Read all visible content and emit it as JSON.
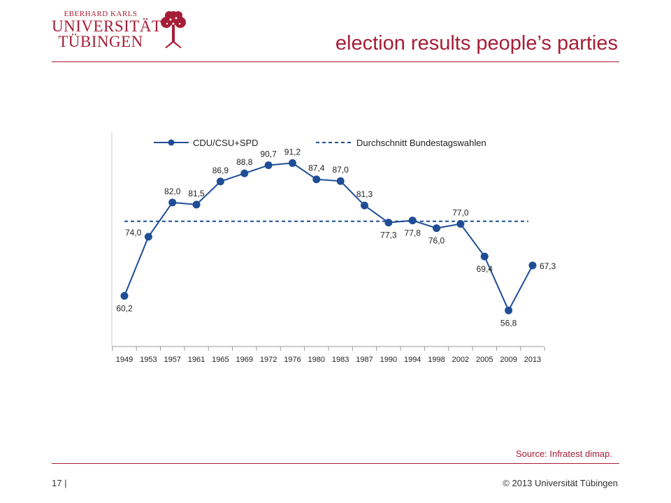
{
  "header": {
    "logo": {
      "line1": "EBERHARD KARLS",
      "line2": "UNIVERSITÄT",
      "line3": "TÜBINGEN"
    },
    "title": "election results people’s parties"
  },
  "chart_data": {
    "type": "line",
    "categories": [
      "1949",
      "1953",
      "1957",
      "1961",
      "1965",
      "1969",
      "1972",
      "1976",
      "1980",
      "1983",
      "1987",
      "1990",
      "1994",
      "1998",
      "2002",
      "2005",
      "2009",
      "2013"
    ],
    "series": [
      {
        "name": "CDU/CSU+SPD",
        "color": "#1f4e96",
        "values": [
          60.2,
          74.0,
          82.0,
          81.5,
          86.9,
          88.8,
          90.7,
          91.2,
          87.4,
          87.0,
          81.3,
          77.3,
          77.8,
          76.0,
          77.0,
          69.4,
          56.8,
          67.3
        ],
        "labels": [
          "60,2",
          "74,0",
          "82,0",
          "81,5",
          "86,9",
          "88,8",
          "90,7",
          "91,2",
          "87,4",
          "87,0",
          "81,3",
          "77,3",
          "77,8",
          "76,0",
          "77,0",
          "69,4",
          "56,8",
          "67,3"
        ]
      },
      {
        "name": "Durchschnitt Bundestagswahlen",
        "color": "#1f4e96",
        "style": "dashed",
        "value": 77.6
      }
    ],
    "ylim": [
      50,
      96
    ],
    "legend_position": "top-left",
    "grid": false
  },
  "footer": {
    "source": "Source: Infratest dimap.",
    "page": "17 |",
    "copyright": "© 2013 Universität Tübingen"
  }
}
